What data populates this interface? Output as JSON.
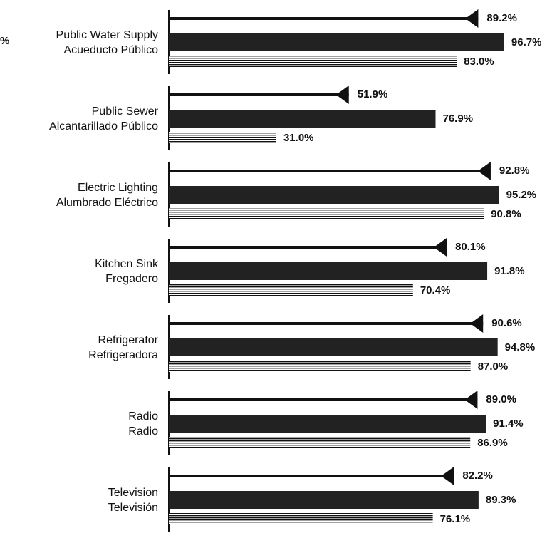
{
  "chart_data": {
    "type": "bar",
    "annotation": "%",
    "categories": [
      [
        "Public Water Supply",
        "Acueducto Público"
      ],
      [
        "Public Sewer",
        "Alcantarillado Público"
      ],
      [
        "Electric Lighting",
        "Alumbrado Eléctrico"
      ],
      [
        "Kitchen Sink",
        "Fregadero"
      ],
      [
        "Refrigerator",
        "Refrigeradora"
      ],
      [
        "Radio",
        "Radio"
      ],
      [
        "Television",
        "Televisión"
      ]
    ],
    "series": [
      {
        "mark": "arrow",
        "color": "#111111",
        "values": [
          89.2,
          51.9,
          92.8,
          80.1,
          90.6,
          89.0,
          82.2
        ],
        "value_labels": [
          "89.2%",
          "51.9%",
          "92.8%",
          "80.1%",
          "90.6%",
          "89.0%",
          "82.2%"
        ]
      },
      {
        "mark": "solid",
        "color": "#222222",
        "values": [
          96.7,
          76.9,
          95.2,
          91.8,
          94.8,
          91.4,
          89.3
        ],
        "value_labels": [
          "96.7%",
          "76.9%",
          "95.2%",
          "91.8%",
          "94.8%",
          "91.4%",
          "89.3%"
        ]
      },
      {
        "mark": "hatched",
        "color": "#111111",
        "values": [
          83.0,
          31.0,
          90.8,
          70.4,
          87.0,
          86.9,
          76.1
        ],
        "value_labels": [
          "83.0%",
          "31.0%",
          "90.8%",
          "70.4%",
          "87.0%",
          "86.9%",
          "76.1%"
        ]
      }
    ],
    "xlim": [
      0,
      100
    ]
  }
}
